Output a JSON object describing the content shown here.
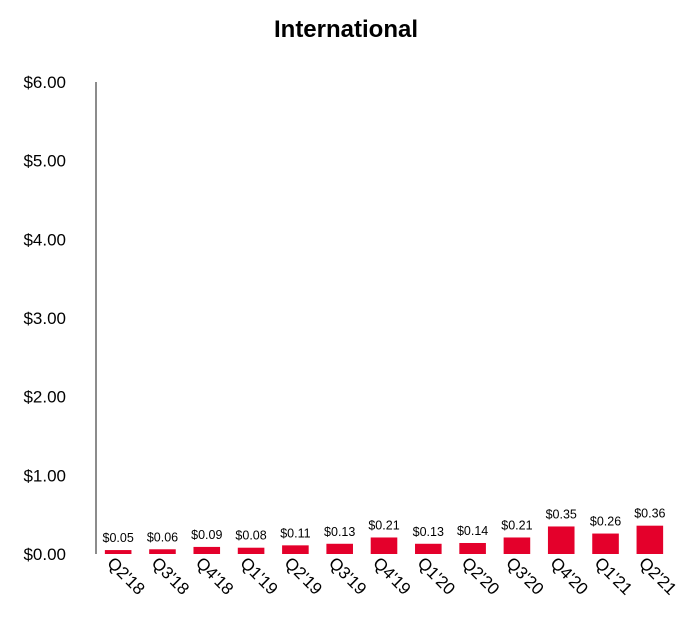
{
  "chart_data": {
    "type": "bar",
    "title": "International",
    "xlabel": "",
    "ylabel": "",
    "ylim": [
      0,
      6
    ],
    "yticks": [
      "$0.00",
      "$1.00",
      "$2.00",
      "$3.00",
      "$4.00",
      "$5.00",
      "$6.00"
    ],
    "categories": [
      "Q2'18",
      "Q3'18",
      "Q4'18",
      "Q1'19",
      "Q2'19",
      "Q3'19",
      "Q4'19",
      "Q1'20",
      "Q2'20",
      "Q3'20",
      "Q4'20",
      "Q1'21",
      "Q2'21"
    ],
    "values": [
      0.05,
      0.06,
      0.09,
      0.08,
      0.11,
      0.13,
      0.21,
      0.13,
      0.14,
      0.21,
      0.35,
      0.26,
      0.36
    ],
    "data_labels": [
      "$0.05",
      "$0.06",
      "$0.09",
      "$0.08",
      "$0.11",
      "$0.13",
      "$0.21",
      "$0.13",
      "$0.14",
      "$0.21",
      "$0.35",
      "$0.26",
      "$0.36"
    ],
    "bar_color": "#e4002b",
    "axis_color": "#8c8c8c",
    "grid": false,
    "legend": "none"
  }
}
